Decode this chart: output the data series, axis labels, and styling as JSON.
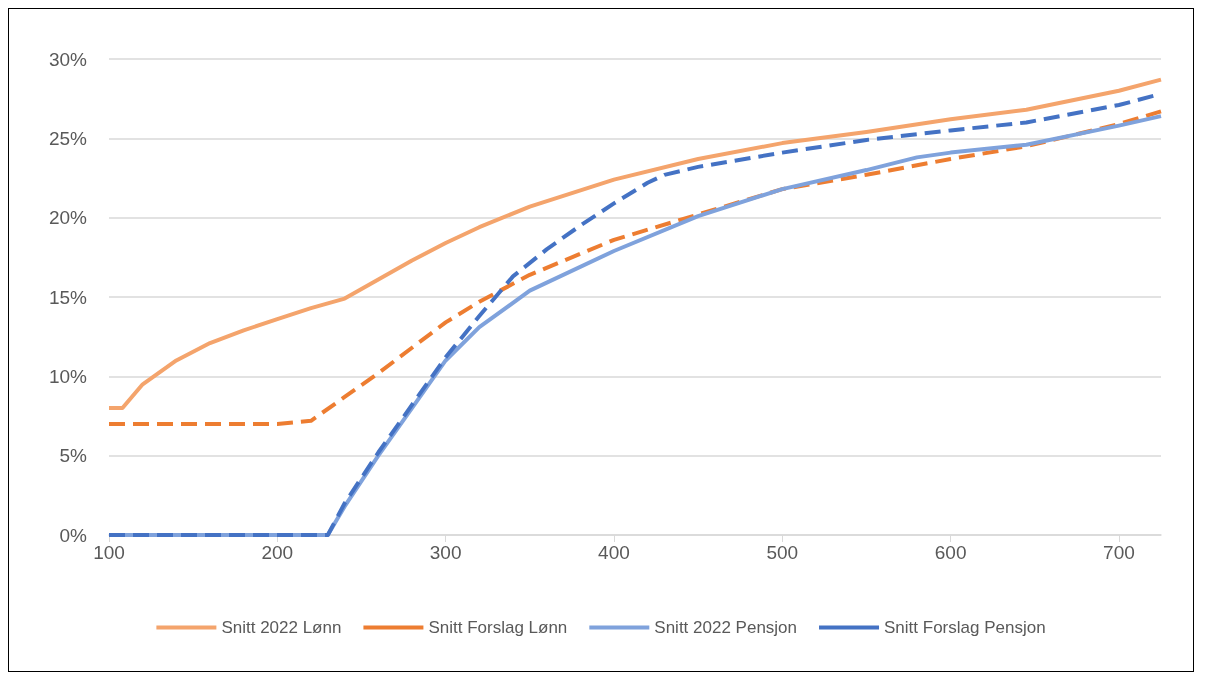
{
  "chart_data": {
    "type": "line",
    "xlim": [
      100,
      725
    ],
    "xticks": [
      100,
      200,
      300,
      400,
      500,
      600,
      700
    ],
    "ylim": [
      0,
      30
    ],
    "yticks": [
      {
        "value": 0,
        "label": "0%"
      },
      {
        "value": 5,
        "label": "5%"
      },
      {
        "value": 10,
        "label": "10%"
      },
      {
        "value": 15,
        "label": "15%"
      },
      {
        "value": 20,
        "label": "20%"
      },
      {
        "value": 25,
        "label": "25%"
      },
      {
        "value": 30,
        "label": "30%"
      }
    ],
    "grid": "y",
    "legend": "bottom",
    "marker": "none",
    "series": [
      {
        "name": "Snitt 2022 Lønn",
        "color": "#f4a46c",
        "line_style": "solid",
        "x": [
          100,
          108,
          120,
          140,
          160,
          180,
          200,
          220,
          240,
          260,
          280,
          300,
          320,
          350,
          400,
          450,
          500,
          550,
          600,
          645,
          700,
          725
        ],
        "values": [
          8,
          8,
          9.5,
          11,
          12.1,
          12.9,
          13.6,
          14.3,
          14.9,
          16.1,
          17.3,
          18.4,
          19.4,
          20.7,
          22.4,
          23.7,
          24.7,
          25.4,
          26.2,
          26.8,
          28,
          28.7
        ]
      },
      {
        "name": "Snitt Forslag Lønn",
        "color": "#ed7d31",
        "line_style": "dashed",
        "x": [
          100,
          200,
          220,
          240,
          260,
          280,
          300,
          320,
          350,
          400,
          450,
          500,
          550,
          600,
          645,
          700,
          725
        ],
        "values": [
          7,
          7,
          7.2,
          8.7,
          10.2,
          11.8,
          13.4,
          14.7,
          16.4,
          18.6,
          20.2,
          21.8,
          22.7,
          23.7,
          24.5,
          25.9,
          26.7
        ]
      },
      {
        "name": "Snitt 2022 Pensjon",
        "color": "#7fa2dc",
        "line_style": "solid",
        "x": [
          100,
          230,
          240,
          260,
          280,
          300,
          320,
          350,
          400,
          450,
          500,
          550,
          580,
          600,
          645,
          700,
          725
        ],
        "values": [
          0,
          0,
          1.8,
          5,
          8,
          11,
          13.1,
          15.4,
          17.9,
          20.1,
          21.8,
          23,
          23.8,
          24.1,
          24.6,
          25.8,
          26.4
        ]
      },
      {
        "name": "Snitt Forslag Pensjon",
        "color": "#4472c4",
        "line_style": "dashed",
        "x": [
          100,
          230,
          240,
          260,
          280,
          300,
          320,
          340,
          360,
          380,
          400,
          420,
          430,
          450,
          500,
          550,
          600,
          645,
          700,
          725
        ],
        "values": [
          0,
          0,
          2,
          5.2,
          8.2,
          11.2,
          13.8,
          16.3,
          18,
          19.5,
          20.9,
          22.2,
          22.7,
          23.2,
          24.1,
          24.9,
          25.5,
          26,
          27.1,
          27.8
        ]
      }
    ]
  }
}
